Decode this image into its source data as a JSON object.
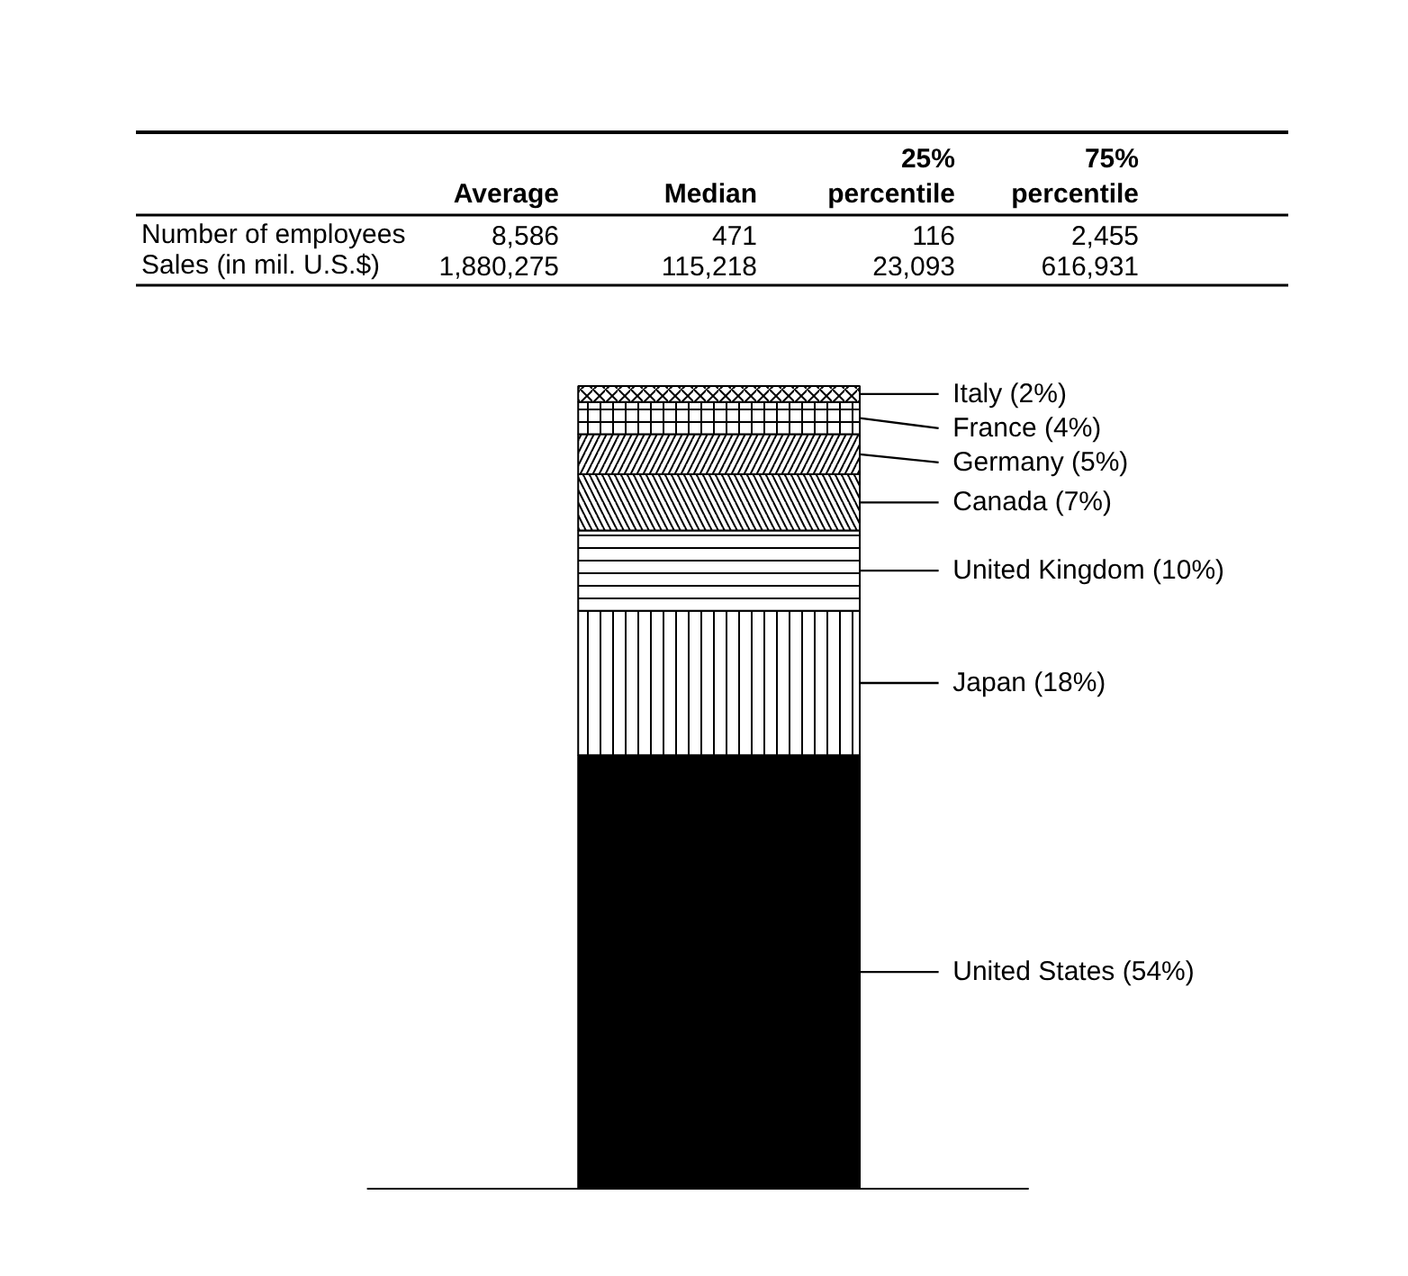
{
  "chart_data": [
    {
      "type": "other",
      "categories": [
        "Average",
        "Median",
        "25% percentile",
        "75% percentile"
      ],
      "y_categories": [
        "Number of employees",
        "Sales (in mil. U.S.$)"
      ],
      "cell_labels": [
        [
          "8,586",
          "471",
          "116",
          "2,455"
        ],
        [
          "1,880,275",
          "115,218",
          "23,093",
          "616,931"
        ]
      ]
    },
    {
      "type": "bar",
      "stacked": true,
      "categories": [
        null
      ],
      "series": [
        {
          "color": "#000000",
          "values": [
            54
          ],
          "value_labels": [
            "United States (54%)"
          ]
        },
        {
          "color": "#ffffff",
          "values": [
            18
          ],
          "value_labels": [
            "Japan (18%)"
          ]
        },
        {
          "color": "#ffffff",
          "values": [
            10
          ],
          "value_labels": [
            "United Kingdom (10%)"
          ]
        },
        {
          "color": "#ffffff",
          "values": [
            7
          ],
          "value_labels": [
            "Canada (7%)"
          ]
        },
        {
          "color": "#ffffff",
          "values": [
            5
          ],
          "value_labels": [
            "Germany (5%)"
          ]
        },
        {
          "color": "#ffffff",
          "values": [
            4
          ],
          "value_labels": [
            "France (4%)"
          ]
        },
        {
          "color": "#ffffff",
          "values": [
            2
          ],
          "value_labels": [
            "Italy (2%)"
          ]
        }
      ]
    }
  ]
}
